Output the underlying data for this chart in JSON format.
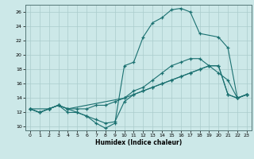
{
  "xlabel": "Humidex (Indice chaleur)",
  "background_color": "#cce8e8",
  "grid_color": "#aacccc",
  "line_color": "#1a7070",
  "xlim": [
    -0.5,
    23.5
  ],
  "ylim": [
    9.5,
    27.0
  ],
  "xticks": [
    0,
    1,
    2,
    3,
    4,
    5,
    6,
    7,
    8,
    9,
    10,
    11,
    12,
    13,
    14,
    15,
    16,
    17,
    18,
    19,
    20,
    21,
    22,
    23
  ],
  "yticks": [
    10,
    12,
    14,
    16,
    18,
    20,
    22,
    24,
    26
  ],
  "curve_high_x": [
    0,
    1,
    2,
    3,
    4,
    5,
    6,
    7,
    8,
    9,
    10,
    11,
    12,
    13,
    14,
    15,
    16,
    17,
    18,
    20,
    21,
    22,
    23
  ],
  "curve_high_y": [
    12.5,
    12.0,
    12.5,
    13.0,
    12.0,
    12.0,
    11.5,
    10.5,
    9.8,
    10.5,
    18.5,
    19.0,
    22.5,
    24.5,
    25.2,
    26.3,
    26.5,
    26.0,
    23.0,
    22.5,
    21.0,
    14.0,
    14.5
  ],
  "curve_mid_x": [
    0,
    2,
    3,
    4,
    10,
    11,
    12,
    13,
    14,
    15,
    16,
    17,
    18,
    19,
    20,
    21,
    22,
    23
  ],
  "curve_mid_y": [
    12.5,
    12.5,
    13.0,
    12.5,
    14.0,
    15.0,
    15.5,
    16.5,
    17.5,
    18.5,
    19.0,
    19.5,
    19.5,
    18.5,
    17.5,
    16.5,
    14.0,
    14.5
  ],
  "curve_low1_x": [
    0,
    1,
    2,
    3,
    4,
    5,
    6,
    7,
    8,
    9,
    10,
    11,
    12,
    13,
    14,
    15,
    16,
    17,
    18,
    19,
    20,
    21,
    22,
    23
  ],
  "curve_low1_y": [
    12.5,
    12.0,
    12.5,
    13.0,
    12.5,
    12.5,
    12.5,
    13.0,
    13.0,
    13.5,
    14.0,
    14.5,
    15.0,
    15.5,
    16.0,
    16.5,
    17.0,
    17.5,
    18.0,
    18.5,
    18.5,
    14.5,
    14.0,
    14.5
  ],
  "curve_low2_x": [
    0,
    1,
    2,
    3,
    4,
    5,
    6,
    7,
    8,
    9,
    10,
    11,
    12,
    13,
    14,
    15,
    16,
    17,
    18,
    19,
    20,
    21,
    22,
    23
  ],
  "curve_low2_y": [
    12.5,
    12.0,
    12.5,
    13.0,
    12.5,
    12.0,
    11.5,
    11.0,
    10.5,
    10.7,
    13.5,
    14.5,
    15.0,
    15.5,
    16.0,
    16.5,
    17.0,
    17.5,
    18.0,
    18.5,
    18.5,
    14.5,
    14.0,
    14.5
  ]
}
